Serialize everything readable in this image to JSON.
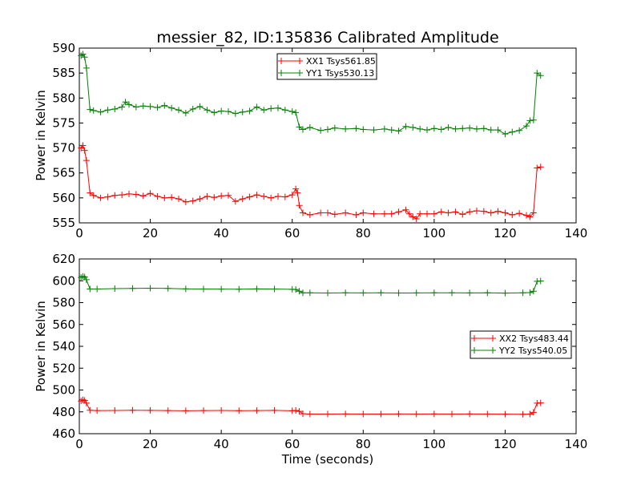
{
  "title": "messier_82, ID:135836 Calibrated Amplitude",
  "chart_data": [
    {
      "type": "line",
      "ylabel": "Power in Kelvin",
      "xlabel": "",
      "xlim": [
        0,
        140
      ],
      "ylim": [
        555,
        590
      ],
      "x_ticks": [
        "0",
        "20",
        "40",
        "60",
        "80",
        "100",
        "120",
        "140"
      ],
      "y_ticks": [
        "555",
        "560",
        "565",
        "570",
        "575",
        "580",
        "585",
        "590"
      ],
      "legend_position": "top-center",
      "series": [
        {
          "name": "XX1 Tsys561.85",
          "color": "#ff0000",
          "marker": "+",
          "x": [
            0.5,
            1.0,
            1.5,
            2.0,
            3,
            4,
            6,
            8,
            10,
            12,
            14,
            16,
            18,
            20,
            22,
            24,
            26,
            28,
            30,
            32,
            34,
            36,
            38,
            40,
            42,
            44,
            46,
            48,
            50,
            52,
            54,
            56,
            58,
            60,
            61,
            61.5,
            62,
            63,
            65,
            68,
            70,
            72,
            75,
            78,
            80,
            83,
            86,
            88,
            90,
            92,
            93,
            94,
            95,
            96,
            98,
            100,
            102,
            104,
            106,
            108,
            110,
            112,
            114,
            116,
            118,
            120,
            122,
            124,
            126,
            127,
            128,
            129,
            130
          ],
          "values": [
            570,
            570.5,
            569.5,
            567.5,
            561,
            560.5,
            560,
            560.2,
            560.5,
            560.6,
            560.8,
            560.7,
            560.4,
            560.9,
            560.3,
            560.0,
            560.1,
            559.8,
            559.2,
            559.4,
            559.8,
            560.3,
            560.1,
            560.4,
            560.5,
            559.3,
            559.8,
            560.2,
            560.6,
            560.3,
            560.0,
            560.3,
            560.2,
            560.6,
            561.8,
            561.0,
            558.5,
            557.0,
            556.6,
            557.0,
            557.0,
            556.7,
            557.0,
            556.6,
            557.0,
            556.8,
            556.8,
            556.8,
            557.2,
            557.6,
            556.8,
            556.2,
            555.8,
            556.8,
            556.8,
            556.8,
            557.2,
            557.0,
            557.2,
            556.7,
            557.2,
            557.4,
            557.3,
            557.0,
            557.3,
            557.0,
            556.6,
            556.9,
            556.5,
            556.2,
            557.0,
            566.0,
            566.2
          ]
        },
        {
          "name": "YY1 Tsys530.13",
          "color": "#008000",
          "marker": "+",
          "x": [
            0.5,
            1.0,
            1.5,
            2.0,
            3,
            4,
            6,
            8,
            10,
            12,
            13,
            14,
            16,
            18,
            20,
            22,
            24,
            26,
            28,
            30,
            32,
            34,
            36,
            38,
            40,
            42,
            44,
            46,
            48,
            50,
            52,
            54,
            56,
            58,
            60,
            61,
            62,
            63,
            65,
            68,
            70,
            72,
            75,
            78,
            80,
            83,
            86,
            88,
            90,
            92,
            94,
            96,
            98,
            100,
            102,
            104,
            106,
            108,
            110,
            112,
            114,
            116,
            118,
            120,
            122,
            124,
            126,
            127,
            128,
            129,
            130
          ],
          "values": [
            588.5,
            588.8,
            588.2,
            586.0,
            577.7,
            577.5,
            577.2,
            577.6,
            577.8,
            578.2,
            579.2,
            578.7,
            578.2,
            578.4,
            578.3,
            578.1,
            578.5,
            578.0,
            577.6,
            577.0,
            577.8,
            578.3,
            577.6,
            577.1,
            577.4,
            577.3,
            576.9,
            577.2,
            577.4,
            578.2,
            577.6,
            577.9,
            578.0,
            577.6,
            577.3,
            577.1,
            574.2,
            573.7,
            574.1,
            573.5,
            573.7,
            574.0,
            573.8,
            573.9,
            573.7,
            573.6,
            573.8,
            573.6,
            573.4,
            574.3,
            574.1,
            573.8,
            573.6,
            573.9,
            573.7,
            574.1,
            573.8,
            573.9,
            574.0,
            573.8,
            573.9,
            573.6,
            573.6,
            572.8,
            573.2,
            573.5,
            574.4,
            575.5,
            575.6,
            585.0,
            584.5
          ]
        }
      ]
    },
    {
      "type": "line",
      "ylabel": "Power in Kelvin",
      "xlabel": "Time (seconds)",
      "xlim": [
        0,
        140
      ],
      "ylim": [
        460,
        620
      ],
      "x_ticks": [
        "0",
        "20",
        "40",
        "60",
        "80",
        "100",
        "120",
        "140"
      ],
      "y_ticks": [
        "460",
        "480",
        "500",
        "520",
        "540",
        "560",
        "580",
        "600",
        "620"
      ],
      "legend_position": "center-right",
      "series": [
        {
          "name": "XX2 Tsys483.44",
          "color": "#ff0000",
          "marker": "+",
          "x": [
            0.5,
            1.0,
            1.5,
            2.0,
            3,
            5,
            10,
            15,
            20,
            25,
            30,
            35,
            40,
            45,
            50,
            55,
            60,
            61,
            62,
            63,
            65,
            70,
            75,
            80,
            85,
            90,
            95,
            100,
            105,
            110,
            115,
            120,
            125,
            127,
            128,
            129,
            130
          ],
          "values": [
            490,
            491,
            490.5,
            488,
            481.5,
            481.2,
            481.3,
            481.5,
            481.4,
            481.2,
            481.0,
            481.2,
            481.3,
            481.1,
            481.2,
            481.4,
            481.0,
            481.3,
            480.5,
            478.3,
            478.0,
            478.0,
            478.1,
            478.0,
            478.0,
            478.1,
            478.0,
            478.1,
            478.0,
            478.1,
            478.0,
            477.9,
            477.8,
            478.0,
            479.5,
            488.0,
            488.2
          ]
        },
        {
          "name": "YY2 Tsys540.05",
          "color": "#008000",
          "marker": "+",
          "x": [
            0.5,
            1.0,
            1.5,
            2.0,
            3,
            5,
            10,
            15,
            20,
            25,
            30,
            35,
            40,
            45,
            50,
            55,
            60,
            61,
            62,
            63,
            65,
            70,
            75,
            80,
            85,
            90,
            95,
            100,
            105,
            110,
            115,
            120,
            125,
            127,
            128,
            129,
            130
          ],
          "values": [
            603,
            604,
            603.5,
            601,
            592.5,
            592.5,
            592.8,
            593.0,
            593.2,
            593.0,
            592.6,
            592.5,
            592.4,
            592.3,
            592.6,
            592.5,
            592.2,
            592.0,
            590.5,
            589.0,
            589.0,
            588.8,
            589.0,
            588.9,
            589.0,
            588.8,
            588.9,
            589.0,
            589.0,
            588.9,
            589.0,
            588.7,
            589.0,
            589.2,
            590.5,
            599.5,
            599.8
          ]
        }
      ]
    }
  ]
}
